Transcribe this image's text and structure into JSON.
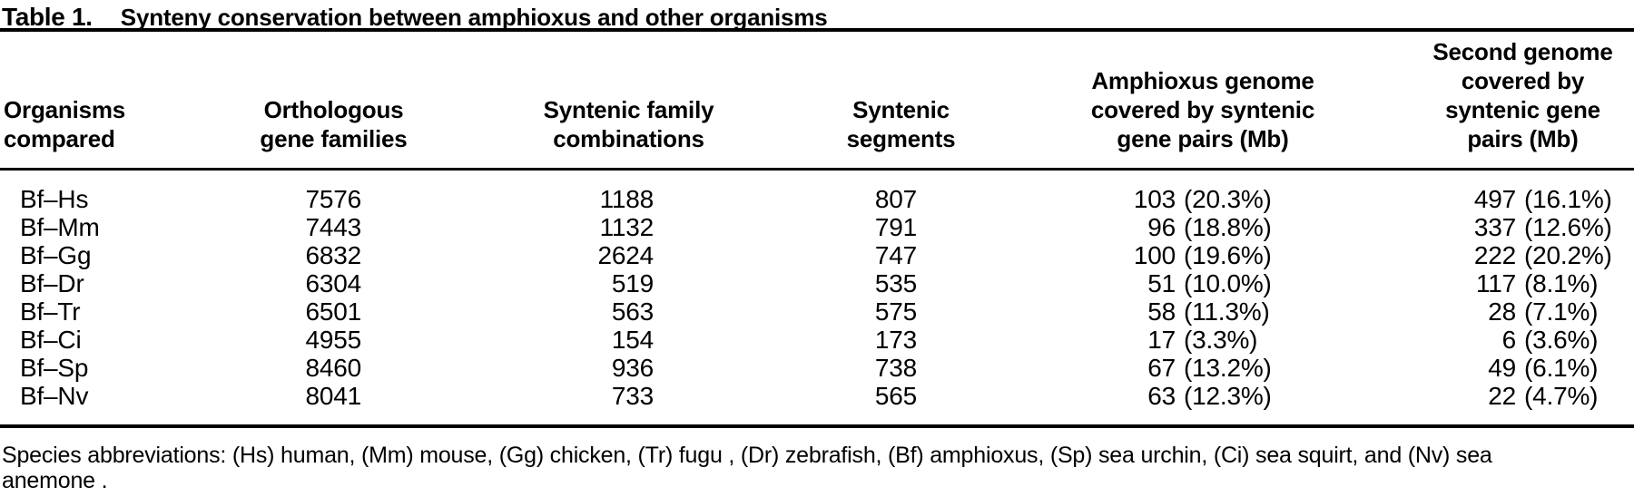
{
  "colors": {
    "text": "#000000",
    "background": "#ffffff",
    "rule": "#000000"
  },
  "table": {
    "label": "Table 1.",
    "title": "Synteny conservation between amphioxus and other organisms",
    "columns": [
      {
        "line1": "Organisms",
        "line2": "compared"
      },
      {
        "line1": "Orthologous",
        "line2": "gene families"
      },
      {
        "line1": "Syntenic family",
        "line2": "combinations"
      },
      {
        "line1": "Syntenic",
        "line2": "segments"
      },
      {
        "line1": "Amphioxus genome",
        "line2": "covered by syntenic",
        "line3": "gene pairs (Mb)"
      },
      {
        "line1": "Second genome",
        "line2": "covered by",
        "line3": "syntenic gene",
        "line4": "pairs (Mb)"
      }
    ],
    "rows": [
      {
        "organisms": "Bf–Hs",
        "orthologous_gene_families": "7576",
        "syntenic_family_combinations": "1188",
        "syntenic_segments": "807",
        "amphioxus_covered": {
          "value": "103",
          "percent": "(20.3%)"
        },
        "second_covered": {
          "value": "497",
          "percent": "(16.1%)"
        }
      },
      {
        "organisms": "Bf–Mm",
        "orthologous_gene_families": "7443",
        "syntenic_family_combinations": "1132",
        "syntenic_segments": "791",
        "amphioxus_covered": {
          "value": "96",
          "percent": "(18.8%)"
        },
        "second_covered": {
          "value": "337",
          "percent": "(12.6%)"
        }
      },
      {
        "organisms": "Bf–Gg",
        "orthologous_gene_families": "6832",
        "syntenic_family_combinations": "2624",
        "syntenic_segments": "747",
        "amphioxus_covered": {
          "value": "100",
          "percent": "(19.6%)"
        },
        "second_covered": {
          "value": "222",
          "percent": "(20.2%)"
        }
      },
      {
        "organisms": "Bf–Dr",
        "orthologous_gene_families": "6304",
        "syntenic_family_combinations": "519",
        "syntenic_segments": "535",
        "amphioxus_covered": {
          "value": "51",
          "percent": "(10.0%)"
        },
        "second_covered": {
          "value": "117",
          "percent": "(8.1%)"
        }
      },
      {
        "organisms": "Bf–Tr",
        "orthologous_gene_families": "6501",
        "syntenic_family_combinations": "563",
        "syntenic_segments": "575",
        "amphioxus_covered": {
          "value": "58",
          "percent": "(11.3%)"
        },
        "second_covered": {
          "value": "28",
          "percent": "(7.1%)"
        }
      },
      {
        "organisms": "Bf–Ci",
        "orthologous_gene_families": "4955",
        "syntenic_family_combinations": "154",
        "syntenic_segments": "173",
        "amphioxus_covered": {
          "value": "17",
          "percent": "(3.3%)"
        },
        "second_covered": {
          "value": "6",
          "percent": "(3.6%)"
        }
      },
      {
        "organisms": "Bf–Sp",
        "orthologous_gene_families": "8460",
        "syntenic_family_combinations": "936",
        "syntenic_segments": "738",
        "amphioxus_covered": {
          "value": "67",
          "percent": "(13.2%)"
        },
        "second_covered": {
          "value": "49",
          "percent": "(6.1%)"
        }
      },
      {
        "organisms": "Bf–Nv",
        "orthologous_gene_families": "8041",
        "syntenic_family_combinations": "733",
        "syntenic_segments": "565",
        "amphioxus_covered": {
          "value": "63",
          "percent": "(12.3%)"
        },
        "second_covered": {
          "value": "22",
          "percent": "(4.7%)"
        }
      }
    ],
    "footnote_lines": [
      "Species abbreviations: (Hs) human, (Mm) mouse, (Gg) chicken, (Tr) fugu , (Dr) zebrafish, (Bf) amphioxus, (Sp) sea urchin, (Ci) sea squirt, and (Nv) sea",
      "anemone ."
    ]
  }
}
